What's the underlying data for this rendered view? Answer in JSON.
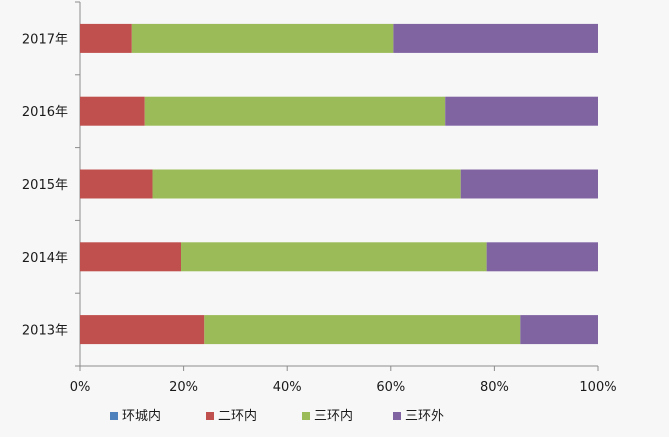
{
  "chart_data": {
    "type": "bar",
    "orientation": "horizontal",
    "stacked": true,
    "percent_stacked": true,
    "categories": [
      "2017年",
      "2016年",
      "2015年",
      "2014年",
      "2013年"
    ],
    "series": [
      {
        "name": "环城内",
        "color": "#4f81bd",
        "values": [
          0,
          0,
          0,
          0,
          0
        ]
      },
      {
        "name": "二环内",
        "color": "#c0504d",
        "values": [
          10,
          12.5,
          14,
          19.5,
          24
        ]
      },
      {
        "name": "三环内",
        "color": "#9bbb59",
        "values": [
          50.5,
          58,
          59.5,
          59,
          61
        ]
      },
      {
        "name": "三环外",
        "color": "#8064a2",
        "values": [
          39.5,
          29.5,
          26.5,
          21.5,
          15
        ]
      }
    ],
    "x_ticks": [
      "0%",
      "20%",
      "40%",
      "60%",
      "80%",
      "100%"
    ],
    "xlim": [
      0,
      100
    ],
    "title": "",
    "xlabel": "",
    "ylabel": "",
    "grid": false,
    "legend_position": "bottom"
  }
}
